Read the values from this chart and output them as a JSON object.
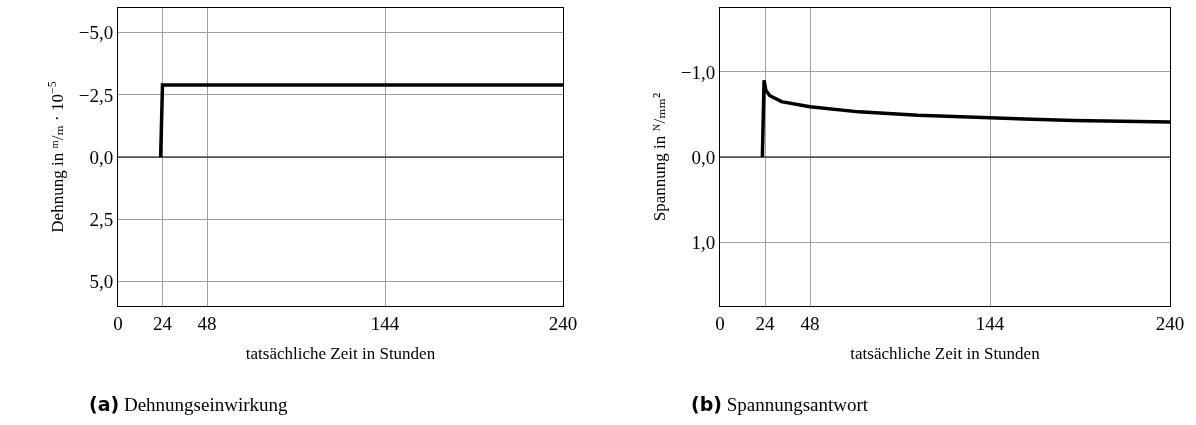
{
  "chart_data": [
    {
      "type": "line",
      "xlabel": "tatsächliche Zeit in Stunden",
      "ylabel": "Dehnung in ᵐ/ₘ · 10$^{−5}$",
      "annotations": [
        "(a) Dehnungseinwirkung"
      ],
      "x": [
        23,
        24,
        240
      ],
      "series": [
        {
          "color": "#000000",
          "values": [
            0,
            -2.9,
            -2.9
          ]
        }
      ],
      "xlim": [
        0,
        240
      ],
      "xticks": [
        0,
        24,
        48,
        144,
        240
      ],
      "ylim": [
        6,
        -6
      ],
      "yticks": [
        {
          "value": -5,
          "label": "−5,0"
        },
        {
          "value": -2.5,
          "label": "−2,5"
        },
        {
          "value": 0,
          "label": "0,0"
        },
        {
          "value": 2.5,
          "label": "2,5"
        },
        {
          "value": 5,
          "label": "5,0"
        }
      ],
      "ref_lines": [
        {
          "axis": "y",
          "value": 0,
          "color": "#000000"
        }
      ],
      "grid": true,
      "marker": "none",
      "line_style": "solid"
    },
    {
      "type": "line",
      "xlabel": "tatsächliche Zeit in Stunden",
      "ylabel": "Spannung in ᴺ/ₘₘ²",
      "annotations": [
        "(b) Spannungsantwort"
      ],
      "x": [
        22.6,
        23.5,
        24.5,
        26.6,
        32.8,
        48,
        74,
        105.5,
        144,
        188.5,
        240
      ],
      "series": [
        {
          "color": "#000000",
          "values": [
            0,
            -0.9,
            -0.78,
            -0.72,
            -0.65,
            -0.59,
            -0.53,
            -0.49,
            -0.46,
            -0.43,
            -0.41
          ]
        }
      ],
      "xlim": [
        0,
        240
      ],
      "xticks": [
        0,
        24,
        48,
        144,
        240
      ],
      "ylim": [
        1.75,
        -1.75
      ],
      "yticks": [
        {
          "value": -1,
          "label": "−1,0"
        },
        {
          "value": 0,
          "label": "0,0"
        },
        {
          "value": 1,
          "label": "1,0"
        }
      ],
      "ref_lines": [
        {
          "axis": "y",
          "value": 0,
          "color": "#000000"
        }
      ],
      "grid": true,
      "marker": "none",
      "line_style": "solid"
    }
  ]
}
